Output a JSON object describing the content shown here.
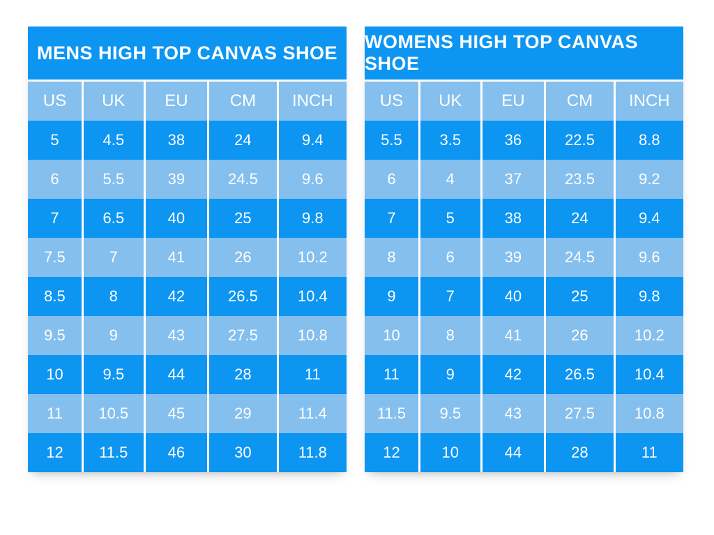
{
  "colors": {
    "primary_blue": "#0d95f2",
    "light_blue": "#84bfee",
    "text_white": "#ffffff",
    "background": "#ffffff"
  },
  "chart_data": [
    {
      "type": "table",
      "title": "MENS HIGH TOP CANVAS SHOE",
      "columns": [
        "US",
        "UK",
        "EU",
        "CM",
        "INCH"
      ],
      "rows": [
        [
          "5",
          "4.5",
          "38",
          "24",
          "9.4"
        ],
        [
          "6",
          "5.5",
          "39",
          "24.5",
          "9.6"
        ],
        [
          "7",
          "6.5",
          "40",
          "25",
          "9.8"
        ],
        [
          "7.5",
          "7",
          "41",
          "26",
          "10.2"
        ],
        [
          "8.5",
          "8",
          "42",
          "26.5",
          "10.4"
        ],
        [
          "9.5",
          "9",
          "43",
          "27.5",
          "10.8"
        ],
        [
          "10",
          "9.5",
          "44",
          "28",
          "11"
        ],
        [
          "11",
          "10.5",
          "45",
          "29",
          "11.4"
        ],
        [
          "12",
          "11.5",
          "46",
          "30",
          "11.8"
        ]
      ]
    },
    {
      "type": "table",
      "title": "WOMENS HIGH TOP CANVAS SHOE",
      "columns": [
        "US",
        "UK",
        "EU",
        "CM",
        "INCH"
      ],
      "rows": [
        [
          "5.5",
          "3.5",
          "36",
          "22.5",
          "8.8"
        ],
        [
          "6",
          "4",
          "37",
          "23.5",
          "9.2"
        ],
        [
          "7",
          "5",
          "38",
          "24",
          "9.4"
        ],
        [
          "8",
          "6",
          "39",
          "24.5",
          "9.6"
        ],
        [
          "9",
          "7",
          "40",
          "25",
          "9.8"
        ],
        [
          "10",
          "8",
          "41",
          "26",
          "10.2"
        ],
        [
          "11",
          "9",
          "42",
          "26.5",
          "10.4"
        ],
        [
          "11.5",
          "9.5",
          "43",
          "27.5",
          "10.8"
        ],
        [
          "12",
          "10",
          "44",
          "28",
          "11"
        ]
      ]
    }
  ]
}
